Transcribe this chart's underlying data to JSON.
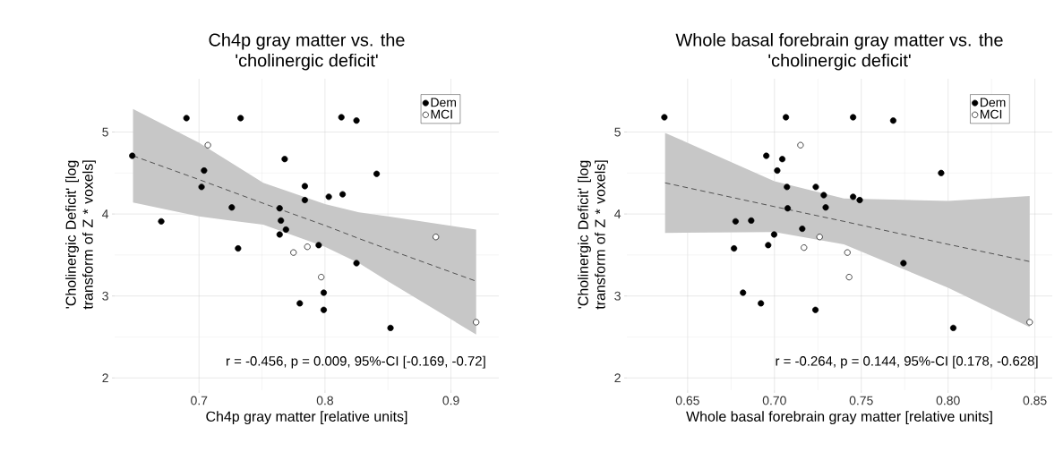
{
  "chart_data": [
    {
      "type": "scatter",
      "title": "Ch4p gray matter vs. the 'cholinergic deficit'",
      "xlabel": "Ch4p gray matter [relative units]",
      "ylabel": "'Cholinergic Deficit' [log transform of Z * voxels]",
      "annotations": [
        "r = -0.456, p = 0.009, 95%-CI [-0.169, -0.72]"
      ],
      "xlim": [
        0.633,
        0.938
      ],
      "ylim": [
        1.85,
        5.65
      ],
      "xticks": [
        0.7,
        0.8,
        0.9
      ],
      "yticks": [
        2,
        3,
        4,
        5
      ],
      "grid": true,
      "legend": "top right",
      "marker": "circle",
      "series": [
        {
          "name": "Dem",
          "color": "#000000",
          "x": [
            0.647,
            0.69,
            0.733,
            0.704,
            0.702,
            0.726,
            0.67,
            0.731,
            0.768,
            0.784,
            0.784,
            0.764,
            0.765,
            0.769,
            0.764,
            0.795,
            0.799,
            0.78,
            0.799,
            0.803,
            0.814,
            0.813,
            0.825,
            0.825,
            0.841,
            0.852
          ],
          "values": [
            4.71,
            5.17,
            5.17,
            4.53,
            4.33,
            4.08,
            3.91,
            3.58,
            4.67,
            4.34,
            4.17,
            4.07,
            3.92,
            3.81,
            3.75,
            3.62,
            3.04,
            2.91,
            2.83,
            4.21,
            4.24,
            5.18,
            5.14,
            3.4,
            4.49,
            2.61
          ]
        },
        {
          "name": "MCI",
          "color": "#ffffff",
          "x": [
            0.707,
            0.775,
            0.786,
            0.797,
            0.888,
            0.92
          ],
          "values": [
            4.84,
            3.53,
            3.6,
            3.23,
            3.72,
            2.68
          ]
        },
        {
          "type": "line",
          "line_style": "dashed",
          "marker": "none",
          "color": "#333333",
          "x": [
            0.6476,
            0.7,
            0.751,
            0.8,
            0.827,
            0.85,
            0.92
          ],
          "values": [
            4.71,
            4.42,
            4.13,
            3.86,
            3.7,
            3.57,
            3.18
          ],
          "lower": [
            4.14,
            3.97,
            3.87,
            3.6,
            3.4,
            3.18,
            2.53
          ],
          "upper": [
            5.28,
            4.87,
            4.38,
            4.12,
            4.02,
            3.97,
            3.81
          ]
        }
      ]
    },
    {
      "type": "scatter",
      "title": "Whole basal forebrain gray matter vs. the 'cholinergic deficit'",
      "xlabel": "Whole basal forebrain gray matter [relative units]",
      "ylabel": "'Cholinergic Deficit' [log transform of Z * voxels]",
      "annotations": [
        "r = -0.264, p = 0.144, 95%-CI [0.178, -0.628]"
      ],
      "xlim": [
        0.615,
        0.86
      ],
      "ylim": [
        1.85,
        5.65
      ],
      "xticks": [
        {
          "value": 0.65,
          "label": "0.65"
        },
        {
          "value": 0.7,
          "label": "0.70"
        },
        {
          "value": 0.75,
          "label": "0.75"
        },
        {
          "value": 0.8,
          "label": "0.80"
        },
        {
          "value": 0.85,
          "label": "0.85"
        }
      ],
      "yticks": [
        2,
        3,
        4,
        5
      ],
      "grid": true,
      "legend": "top right",
      "marker": "circle",
      "series": [
        {
          "name": "Dem",
          "color": "#000000",
          "x": [
            0.6366,
            0.7066,
            0.6953,
            0.7045,
            0.7016,
            0.7072,
            0.7238,
            0.7284,
            0.7295,
            0.7076,
            0.6776,
            0.6866,
            0.716,
            0.6998,
            0.6964,
            0.6767,
            0.6819,
            0.6922,
            0.7236,
            0.7453,
            0.7684,
            0.7453,
            0.7491,
            0.7743,
            0.796,
            0.803
          ],
          "values": [
            5.18,
            5.18,
            4.71,
            4.67,
            4.53,
            4.33,
            4.33,
            4.23,
            4.08,
            4.07,
            3.91,
            3.92,
            3.82,
            3.75,
            3.62,
            3.58,
            3.04,
            2.91,
            2.83,
            5.18,
            5.14,
            4.21,
            4.17,
            3.4,
            4.5,
            2.61
          ]
        },
        {
          "name": "MCI",
          "color": "#ffffff",
          "x": [
            0.715,
            0.726,
            0.717,
            0.742,
            0.743,
            0.847
          ],
          "values": [
            4.84,
            3.72,
            3.59,
            3.53,
            3.23,
            2.68
          ]
        },
        {
          "type": "line",
          "line_style": "dashed",
          "marker": "none",
          "color": "#333333",
          "x": [
            0.637,
            0.7,
            0.74,
            0.8,
            0.847
          ],
          "values": [
            4.38,
            4.09,
            3.91,
            3.63,
            3.42
          ],
          "lower": [
            3.77,
            3.78,
            3.63,
            3.1,
            2.62
          ],
          "upper": [
            4.99,
            4.4,
            4.19,
            4.16,
            4.22
          ]
        }
      ]
    }
  ]
}
